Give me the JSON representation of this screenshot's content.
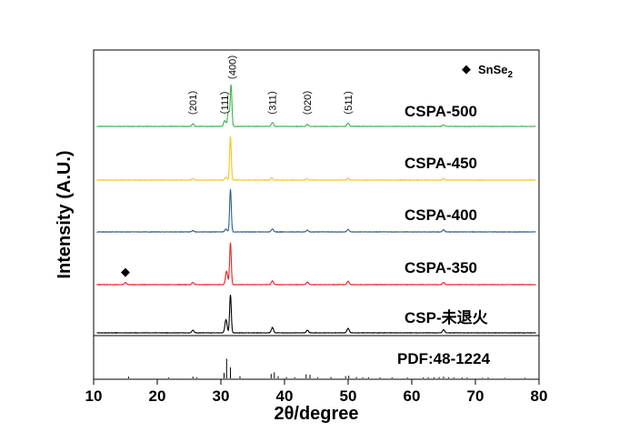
{
  "chart_data": {
    "type": "line",
    "title": "",
    "xlabel": "2θ/degree",
    "ylabel": "Intensity (A.U.)",
    "xlim": [
      10,
      80
    ],
    "xticks": [
      10,
      20,
      30,
      40,
      50,
      60,
      70,
      80
    ],
    "y_ticks_shown": false,
    "series": [
      {
        "name": "CSPA-500",
        "color": "#39b54a",
        "peaks": [
          [
            25.6,
            0.06
          ],
          [
            30.6,
            0.14
          ],
          [
            31.2,
            0.35
          ],
          [
            31.6,
            1.0
          ],
          [
            38.1,
            0.1
          ],
          [
            43.6,
            0.05
          ],
          [
            50.0,
            0.08
          ],
          [
            65.0,
            0.04
          ]
        ]
      },
      {
        "name": "CSPA-450",
        "color": "#f5c518",
        "peaks": [
          [
            25.6,
            0.03
          ],
          [
            30.8,
            0.06
          ],
          [
            31.5,
            1.0
          ],
          [
            38.0,
            0.05
          ],
          [
            43.5,
            0.03
          ],
          [
            50.0,
            0.04
          ],
          [
            65.0,
            0.03
          ]
        ]
      },
      {
        "name": "CSPA-400",
        "color": "#2f5d8a",
        "peaks": [
          [
            25.6,
            0.03
          ],
          [
            30.8,
            0.07
          ],
          [
            31.5,
            1.0
          ],
          [
            38.1,
            0.07
          ],
          [
            43.6,
            0.04
          ],
          [
            50.0,
            0.06
          ],
          [
            65.0,
            0.05
          ]
        ]
      },
      {
        "name": "CSPA-350",
        "color": "#e8231f",
        "peaks": [
          [
            15.0,
            0.05
          ],
          [
            25.6,
            0.05
          ],
          [
            30.9,
            0.32
          ],
          [
            31.5,
            0.98
          ],
          [
            38.1,
            0.09
          ],
          [
            43.6,
            0.06
          ],
          [
            50.0,
            0.08
          ],
          [
            65.0,
            0.05
          ]
        ]
      },
      {
        "name": "CSP-未退火",
        "color": "#000000",
        "peaks": [
          [
            25.6,
            0.07
          ],
          [
            30.8,
            0.35
          ],
          [
            31.5,
            1.0
          ],
          [
            38.1,
            0.14
          ],
          [
            43.6,
            0.07
          ],
          [
            50.0,
            0.12
          ],
          [
            65.0,
            0.08
          ]
        ]
      }
    ],
    "reference": {
      "name": "PDF:48-1224",
      "lines": [
        [
          15.5,
          0.08
        ],
        [
          21.8,
          0.04
        ],
        [
          25.6,
          0.08
        ],
        [
          26.2,
          0.05
        ],
        [
          30.5,
          0.25
        ],
        [
          30.9,
          0.9
        ],
        [
          31.5,
          0.5
        ],
        [
          33.0,
          0.1
        ],
        [
          37.9,
          0.2
        ],
        [
          38.4,
          0.28
        ],
        [
          39.0,
          0.1
        ],
        [
          40.3,
          0.06
        ],
        [
          41.6,
          0.05
        ],
        [
          43.4,
          0.18
        ],
        [
          44.0,
          0.16
        ],
        [
          45.2,
          0.05
        ],
        [
          47.3,
          0.06
        ],
        [
          49.6,
          0.1
        ],
        [
          50.1,
          0.12
        ],
        [
          51.3,
          0.06
        ],
        [
          52.3,
          0.05
        ],
        [
          53.2,
          0.05
        ],
        [
          55.0,
          0.04
        ],
        [
          56.9,
          0.05
        ],
        [
          59.3,
          0.04
        ],
        [
          61.8,
          0.04
        ],
        [
          62.6,
          0.05
        ],
        [
          63.5,
          0.04
        ],
        [
          64.3,
          0.06
        ],
        [
          65.0,
          0.08
        ],
        [
          65.8,
          0.05
        ],
        [
          66.6,
          0.04
        ],
        [
          67.9,
          0.04
        ],
        [
          68.7,
          0.04
        ],
        [
          71.1,
          0.03
        ],
        [
          72.0,
          0.04
        ],
        [
          74.6,
          0.03
        ],
        [
          77.8,
          0.03
        ]
      ]
    },
    "peak_labels": [
      {
        "text": "（201）",
        "x": 25.6
      },
      {
        "text": "（111）",
        "x": 30.6
      },
      {
        "text": "（400）",
        "x": 31.8
      },
      {
        "text": "（311）",
        "x": 38.1
      },
      {
        "text": "（020）",
        "x": 43.6
      },
      {
        "text": "（511）",
        "x": 50.0
      }
    ],
    "impurity_marker": {
      "symbol": "◆",
      "x": 15.0,
      "series": "CSPA-350"
    },
    "legend": {
      "symbol": "◆",
      "label": "SnSe",
      "subscript": "2",
      "position": "top-right"
    }
  }
}
